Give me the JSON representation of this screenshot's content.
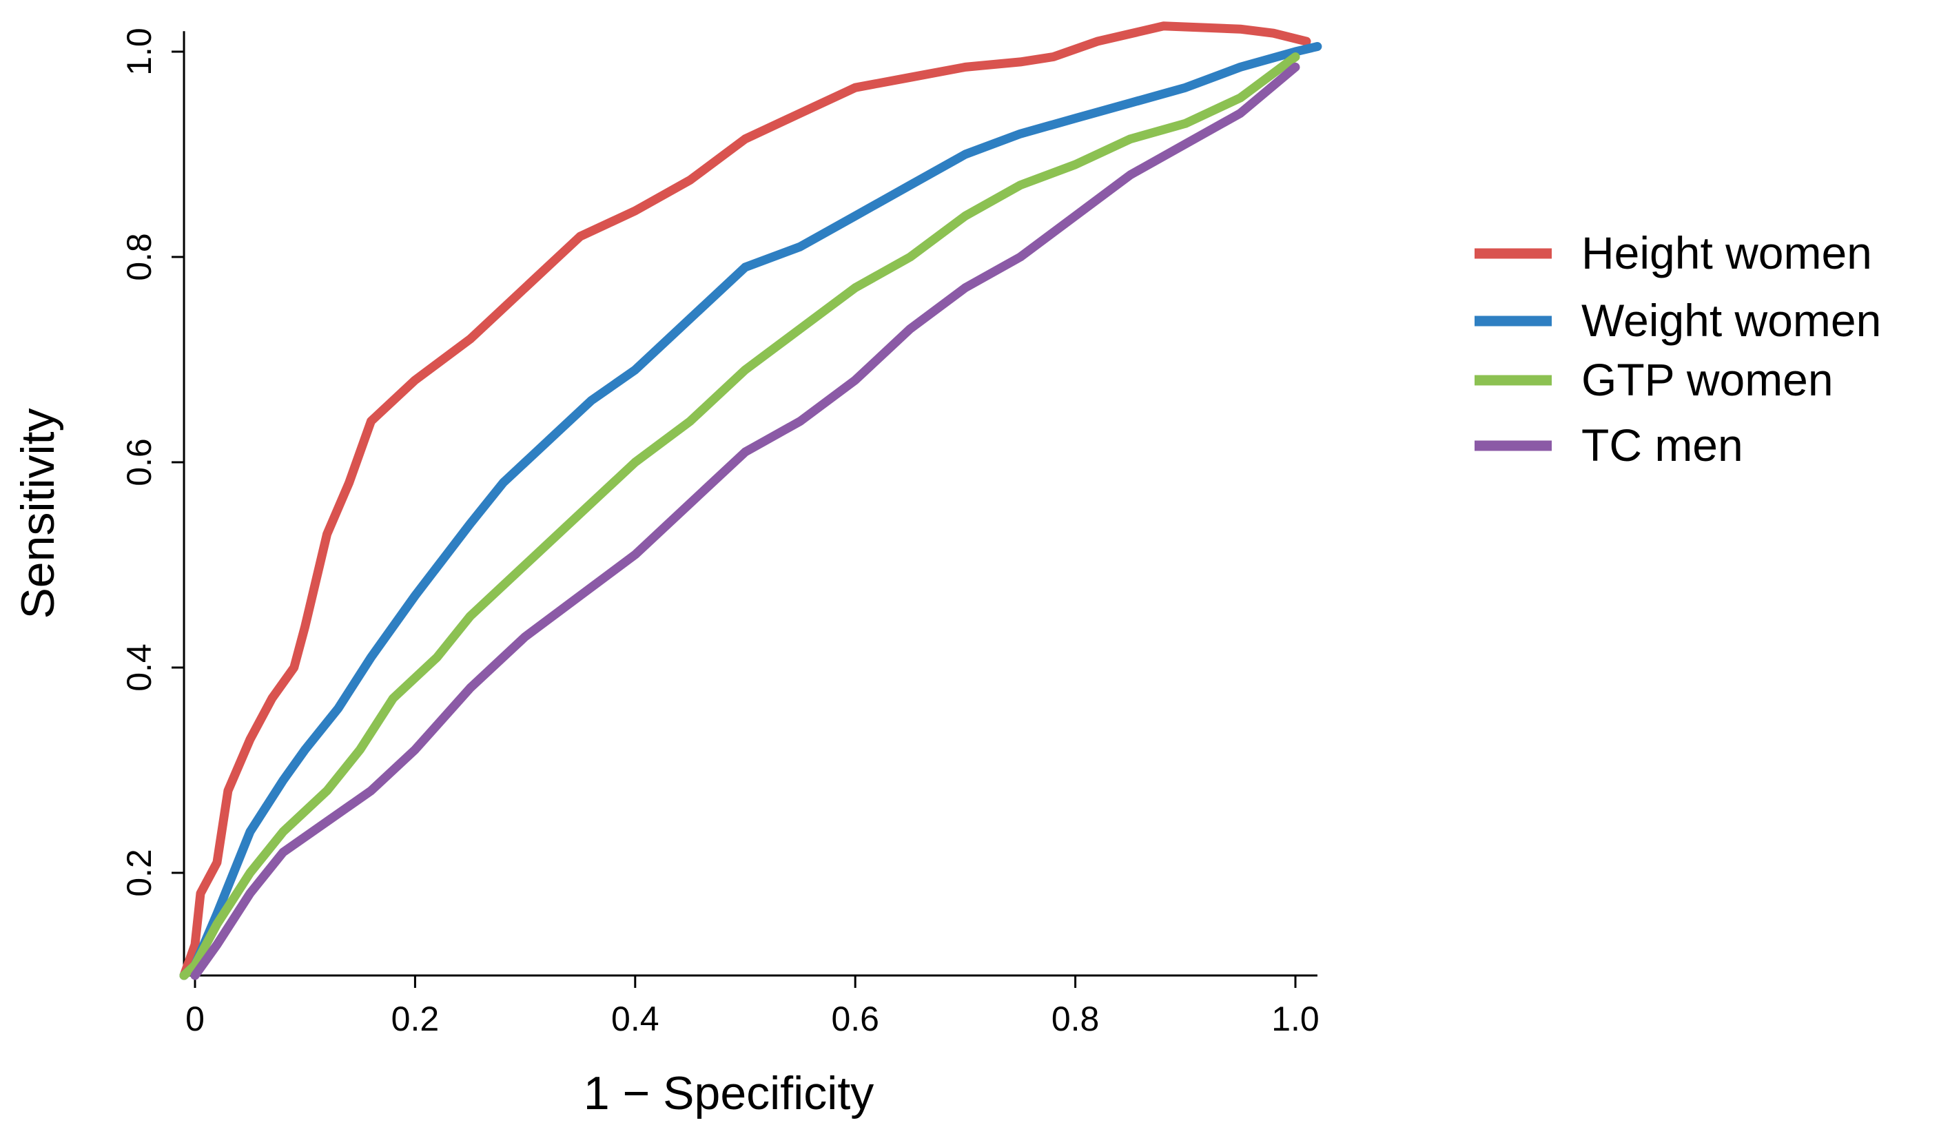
{
  "chart_data": {
    "type": "line",
    "title": "",
    "xlabel": "1 − Specificity",
    "ylabel": "Sensitivity",
    "xlim": [
      -0.01,
      1.02
    ],
    "ylim": [
      0.1,
      1.02
    ],
    "x_ticks": [
      0,
      0.2,
      0.4,
      0.6,
      0.8,
      1.0
    ],
    "x_tick_labels": [
      "0",
      "0.2",
      "0.4",
      "0.6",
      "0.8",
      "1.0"
    ],
    "y_ticks": [
      0.2,
      0.4,
      0.6,
      0.8,
      1.0
    ],
    "y_tick_labels": [
      "0.2",
      "0.4",
      "0.6",
      "0.8",
      "1.0"
    ],
    "grid": false,
    "legend_position": "right",
    "series": [
      {
        "name": "Height women",
        "color": "#d9534f",
        "x": [
          -0.01,
          0.0,
          0.005,
          0.02,
          0.03,
          0.05,
          0.07,
          0.09,
          0.1,
          0.12,
          0.14,
          0.16,
          0.2,
          0.25,
          0.3,
          0.35,
          0.4,
          0.45,
          0.5,
          0.55,
          0.6,
          0.65,
          0.7,
          0.75,
          0.78,
          0.82,
          0.88,
          0.95,
          0.98,
          1.01
        ],
        "y": [
          0.1,
          0.13,
          0.18,
          0.21,
          0.28,
          0.33,
          0.37,
          0.4,
          0.44,
          0.53,
          0.58,
          0.64,
          0.68,
          0.72,
          0.77,
          0.82,
          0.845,
          0.875,
          0.915,
          0.94,
          0.965,
          0.975,
          0.985,
          0.99,
          0.995,
          1.01,
          1.025,
          1.022,
          1.018,
          1.01
        ]
      },
      {
        "name": "Weight women",
        "color": "#2e7fc2",
        "x": [
          -0.01,
          0.0,
          0.02,
          0.05,
          0.08,
          0.1,
          0.13,
          0.16,
          0.2,
          0.25,
          0.28,
          0.32,
          0.36,
          0.4,
          0.45,
          0.5,
          0.55,
          0.6,
          0.65,
          0.7,
          0.75,
          0.8,
          0.85,
          0.9,
          0.95,
          1.0,
          1.02
        ],
        "y": [
          0.1,
          0.11,
          0.16,
          0.24,
          0.29,
          0.32,
          0.36,
          0.41,
          0.47,
          0.54,
          0.58,
          0.62,
          0.66,
          0.69,
          0.74,
          0.79,
          0.81,
          0.84,
          0.87,
          0.9,
          0.92,
          0.935,
          0.95,
          0.965,
          0.985,
          1.0,
          1.005
        ]
      },
      {
        "name": "GTP women",
        "color": "#8cc152",
        "x": [
          -0.01,
          0.0,
          0.02,
          0.05,
          0.08,
          0.12,
          0.15,
          0.18,
          0.22,
          0.25,
          0.3,
          0.35,
          0.4,
          0.45,
          0.5,
          0.55,
          0.6,
          0.65,
          0.7,
          0.75,
          0.8,
          0.85,
          0.9,
          0.95,
          1.0
        ],
        "y": [
          0.1,
          0.11,
          0.15,
          0.2,
          0.24,
          0.28,
          0.32,
          0.37,
          0.41,
          0.45,
          0.5,
          0.55,
          0.6,
          0.64,
          0.69,
          0.73,
          0.77,
          0.8,
          0.84,
          0.87,
          0.89,
          0.915,
          0.93,
          0.955,
          0.995
        ]
      },
      {
        "name": "TC men",
        "color": "#8b5aa6",
        "x": [
          0.0,
          0.02,
          0.05,
          0.08,
          0.12,
          0.16,
          0.2,
          0.25,
          0.3,
          0.35,
          0.4,
          0.45,
          0.5,
          0.55,
          0.6,
          0.65,
          0.7,
          0.75,
          0.8,
          0.85,
          0.9,
          0.95,
          1.0
        ],
        "y": [
          0.1,
          0.13,
          0.18,
          0.22,
          0.25,
          0.28,
          0.32,
          0.38,
          0.43,
          0.47,
          0.51,
          0.56,
          0.61,
          0.64,
          0.68,
          0.73,
          0.77,
          0.8,
          0.84,
          0.88,
          0.91,
          0.94,
          0.985
        ]
      }
    ]
  }
}
